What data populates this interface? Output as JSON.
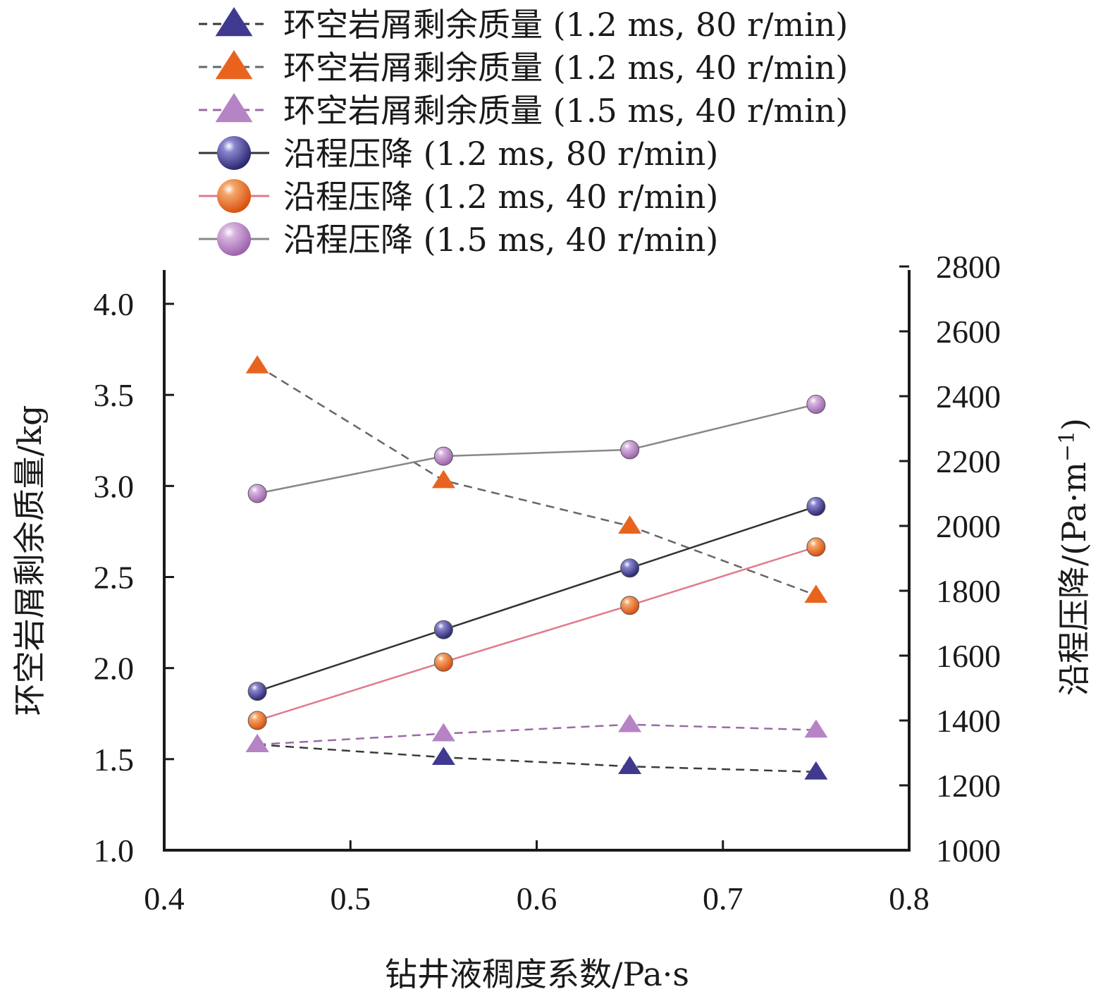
{
  "chart_data": {
    "type": "line",
    "xlabel": "钻井液稠度系数/Pa·s",
    "ylabel_left": "环空岩屑剩余质量/kg",
    "ylabel_right": "沿程压降/(Pa·m",
    "ylabel_right_sup": "−1",
    "ylabel_right_close": ")",
    "xlim": [
      0.4,
      0.8
    ],
    "xticks": [
      "0.4",
      "0.5",
      "0.6",
      "0.7",
      "0.8"
    ],
    "ylim_left": [
      1.0,
      4.2
    ],
    "yticks_left": [
      "1.0",
      "1.5",
      "2.0",
      "2.5",
      "3.0",
      "3.5",
      "4.0"
    ],
    "ylim_right": [
      1000,
      2800
    ],
    "yticks_right": [
      "1000",
      "1200",
      "1400",
      "1600",
      "1800",
      "2000",
      "2200",
      "2400",
      "2600",
      "2800"
    ],
    "x": [
      0.45,
      0.55,
      0.65,
      0.75
    ],
    "series": [
      {
        "name": "环空岩屑剩余质量 (1.2 ms, 80 r/min)",
        "axis": "left",
        "marker": "triangle",
        "line": "dashed",
        "color": "#3f3a8f",
        "line_color": "#3a3a3a",
        "values": [
          1.58,
          1.51,
          1.46,
          1.43
        ]
      },
      {
        "name": "环空岩屑剩余质量 (1.2 ms, 40 r/min)",
        "axis": "left",
        "marker": "triangle",
        "line": "dashed",
        "color": "#e8641e",
        "line_color": "#666666",
        "values": [
          3.66,
          3.03,
          2.78,
          2.4
        ]
      },
      {
        "name": "环空岩屑剩余质量 (1.5 ms, 40 r/min)",
        "axis": "left",
        "marker": "triangle",
        "line": "dashed",
        "color": "#b683c4",
        "line_color": "#9a6aa8",
        "values": [
          1.58,
          1.64,
          1.69,
          1.66
        ]
      },
      {
        "name": "沿程压降 (1.2 ms, 80 r/min)",
        "axis": "right",
        "marker": "circle",
        "line": "solid",
        "color": "#3f3a8f",
        "line_color": "#333333",
        "values": [
          1490,
          1680,
          1870,
          2060
        ]
      },
      {
        "name": "沿程压降 (1.2 ms, 40 r/min)",
        "axis": "right",
        "marker": "circle",
        "line": "solid",
        "color": "#e8641e",
        "line_color": "#e07a8a",
        "values": [
          1400,
          1580,
          1755,
          1935
        ]
      },
      {
        "name": "沿程压降 (1.5 ms, 40 r/min)",
        "axis": "right",
        "marker": "circle",
        "line": "solid",
        "color": "#b683c4",
        "line_color": "#888888",
        "values": [
          2100,
          2215,
          2235,
          2375
        ]
      }
    ],
    "legend_position": "top"
  }
}
